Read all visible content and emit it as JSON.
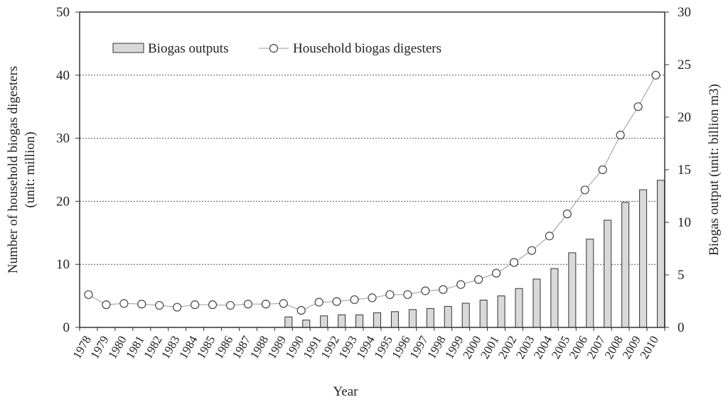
{
  "chart_data": {
    "type": "bar+line",
    "title": "",
    "xlabel": "Year",
    "ylabel_left": "Number of household biogas digesters\n(unit: million)",
    "ylabel_right": "Biogas output (unit: billion m3)",
    "ylim_left": [
      0,
      50
    ],
    "ylim_right": [
      0,
      30
    ],
    "yticks_left": [
      "0",
      "10",
      "20",
      "30",
      "40",
      "50"
    ],
    "yticks_right": [
      "0",
      "5",
      "10",
      "15",
      "20",
      "25",
      "30"
    ],
    "grid": "horizontal dotted at left-axis 10, 20, 30, 40",
    "legend_position": "top-left",
    "categories": [
      "1978",
      "1979",
      "1980",
      "1981",
      "1982",
      "1983",
      "1984",
      "1985",
      "1986",
      "1987",
      "1988",
      "1989",
      "1990",
      "1991",
      "1992",
      "1993",
      "1994",
      "1995",
      "1996",
      "1997",
      "1998",
      "1999",
      "2000",
      "2001",
      "2002",
      "2003",
      "2004",
      "2005",
      "2006",
      "2007",
      "2008",
      "2009",
      "2010"
    ],
    "series": [
      {
        "name": "Biogas outputs",
        "type": "bar",
        "axis": "right",
        "color": "#d9d9d9",
        "values": [
          0,
          0,
          0,
          0,
          0,
          0,
          0,
          0,
          0,
          0,
          0,
          1.0,
          0.7,
          1.1,
          1.2,
          1.2,
          1.4,
          1.5,
          1.7,
          1.8,
          2.0,
          2.3,
          2.6,
          3.0,
          3.7,
          4.6,
          5.6,
          7.1,
          8.4,
          10.2,
          11.9,
          13.1,
          14.0
        ]
      },
      {
        "name": "Household biogas digesters",
        "type": "line",
        "axis": "left",
        "color": "#999999",
        "values": [
          5.2,
          3.6,
          3.8,
          3.7,
          3.5,
          3.2,
          3.6,
          3.6,
          3.5,
          3.7,
          3.7,
          3.8,
          2.7,
          4.0,
          4.1,
          4.4,
          4.7,
          5.2,
          5.2,
          5.8,
          6.0,
          6.8,
          7.6,
          8.6,
          10.3,
          12.2,
          14.5,
          18.0,
          21.8,
          25.0,
          30.5,
          35.0,
          40.0
        ]
      }
    ]
  }
}
